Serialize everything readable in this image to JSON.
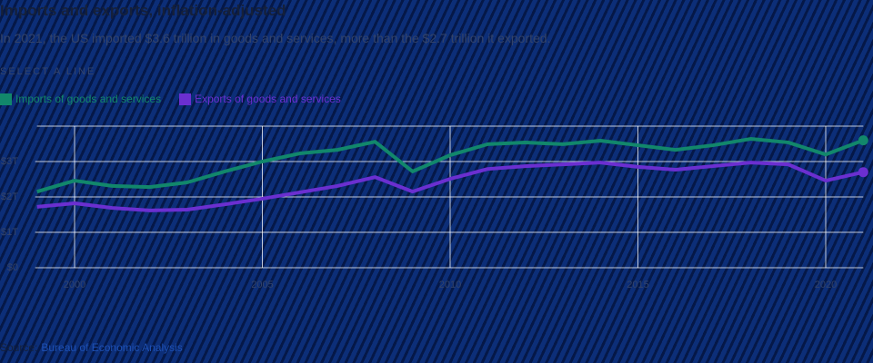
{
  "chart_data": {
    "type": "line",
    "title": "Imports and exports, inflation-adjusted",
    "subtitle": "In 2021, the US imported $3.6 trillion in goods and services, more than the $2.7 trillion it exported.",
    "instruction": "SELECT A LINE",
    "source_label": "Source:",
    "source": "Bureau of Economic Analysis",
    "x": [
      1999,
      2000,
      2001,
      2002,
      2003,
      2004,
      2005,
      2006,
      2007,
      2008,
      2009,
      2010,
      2011,
      2012,
      2013,
      2014,
      2015,
      2016,
      2017,
      2018,
      2019,
      2020,
      2021
    ],
    "series": [
      {
        "name": "Imports of goods and services",
        "color": "#12876b",
        "values": [
          2.15,
          2.46,
          2.31,
          2.28,
          2.41,
          2.72,
          3.0,
          3.23,
          3.33,
          3.56,
          2.72,
          3.18,
          3.49,
          3.54,
          3.49,
          3.59,
          3.46,
          3.33,
          3.46,
          3.64,
          3.54,
          3.2,
          3.6
        ]
      },
      {
        "name": "Exports of goods and services",
        "color": "#6b2fd0",
        "values": [
          1.72,
          1.82,
          1.69,
          1.62,
          1.64,
          1.79,
          1.95,
          2.13,
          2.31,
          2.56,
          2.15,
          2.51,
          2.79,
          2.87,
          2.92,
          2.97,
          2.85,
          2.77,
          2.87,
          2.97,
          2.92,
          2.46,
          2.7
        ]
      }
    ],
    "xlim": [
      1999,
      2021
    ],
    "xticks": [
      2000,
      2005,
      2010,
      2015,
      2020
    ],
    "ylim": [
      0,
      4
    ],
    "yticks": [
      {
        "value": 0,
        "label": "$0"
      },
      {
        "value": 1,
        "label": "$1T"
      },
      {
        "value": 2,
        "label": "$2T"
      },
      {
        "value": 3,
        "label": "$3T"
      }
    ],
    "grid": true
  }
}
